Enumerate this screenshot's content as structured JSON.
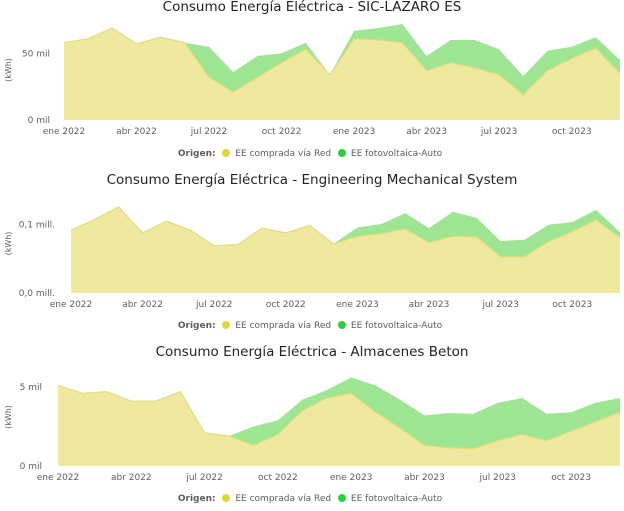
{
  "legend": {
    "title": "Origen:",
    "items": [
      {
        "name": "EE comprada vía Red",
        "color": "#e0d53c"
      },
      {
        "name": "EE fotovoltaica-Auto",
        "color": "#2ecc40"
      }
    ]
  },
  "colors": {
    "red_fill": "#efe9a0",
    "red_line": "#e2dc7a",
    "solar_fill": "#9ee694"
  },
  "chart_data": [
    {
      "type": "area",
      "stacked": true,
      "title": "Consumo Energía Eléctrica - SIC-LAZARO ES",
      "ylabel": "(kWh)",
      "x_ticks": [
        "ene 2022",
        "abr 2022",
        "jul 2022",
        "oct 2022",
        "ene 2023",
        "abr 2023",
        "jul 2023",
        "oct 2023"
      ],
      "y_ticks": [
        {
          "value": 0,
          "label": "0 mil"
        },
        {
          "value": 50000,
          "label": "50 mil"
        }
      ],
      "ylim": [
        0,
        75000
      ],
      "x": [
        "2022-01",
        "2022-02",
        "2022-03",
        "2022-04",
        "2022-05",
        "2022-06",
        "2022-07",
        "2022-08",
        "2022-09",
        "2022-10",
        "2022-11",
        "2022-12",
        "2023-01",
        "2023-02",
        "2023-03",
        "2023-04",
        "2023-05",
        "2023-06",
        "2023-07",
        "2023-08",
        "2023-09",
        "2023-10",
        "2023-11",
        "2023-12"
      ],
      "series": [
        {
          "name": "EE comprada vía Red",
          "values": [
            58000,
            61000,
            69000,
            57000,
            62000,
            58000,
            32000,
            21000,
            32000,
            43000,
            53000,
            34000,
            61000,
            60000,
            58000,
            37000,
            43000,
            39000,
            34000,
            19000,
            37000,
            46000,
            54000,
            35000
          ]
        },
        {
          "name": "EE fotovoltaica-Auto",
          "values": [
            0,
            0,
            0,
            0,
            0,
            0,
            23000,
            15000,
            16000,
            7000,
            5000,
            0,
            6000,
            9000,
            14000,
            11000,
            17000,
            21000,
            19000,
            14000,
            15000,
            9000,
            8000,
            10000
          ]
        }
      ]
    },
    {
      "type": "area",
      "stacked": true,
      "title": "Consumo Energía Eléctrica - Engineering Mechanical System",
      "ylabel": "(kWh)",
      "x_ticks": [
        "ene 2022",
        "abr 2022",
        "jul 2022",
        "oct 2022",
        "ene 2023",
        "abr 2023",
        "jul 2023",
        "oct 2023"
      ],
      "y_ticks": [
        {
          "value": 0,
          "label": "0,0 mill."
        },
        {
          "value": 100000,
          "label": "0,1 mill."
        }
      ],
      "ylim": [
        0,
        145000
      ],
      "x": [
        "2022-01",
        "2022-02",
        "2022-03",
        "2022-04",
        "2022-05",
        "2022-06",
        "2022-07",
        "2022-08",
        "2022-09",
        "2022-10",
        "2022-11",
        "2022-12",
        "2023-01",
        "2023-02",
        "2023-03",
        "2023-04",
        "2023-05",
        "2023-06",
        "2023-07",
        "2023-08",
        "2023-09",
        "2023-10",
        "2023-11",
        "2023-12"
      ],
      "series": [
        {
          "name": "EE comprada vía Red",
          "values": [
            92000,
            108000,
            126000,
            88000,
            105000,
            92000,
            69000,
            71000,
            95000,
            88000,
            99000,
            72000,
            83000,
            87000,
            94000,
            74000,
            83000,
            82000,
            53000,
            53000,
            75000,
            90000,
            107000,
            81000
          ]
        },
        {
          "name": "EE fotovoltaica-Auto",
          "values": [
            0,
            0,
            0,
            0,
            0,
            0,
            0,
            0,
            0,
            0,
            0,
            0,
            13000,
            14000,
            23000,
            21000,
            36000,
            28000,
            23000,
            25000,
            25000,
            14000,
            15000,
            8000
          ]
        }
      ]
    },
    {
      "type": "area",
      "stacked": true,
      "title": "Consumo Energía Eléctrica - Almacenes Beton",
      "ylabel": "(kWh)",
      "x_ticks": [
        "ene 2022",
        "abr 2022",
        "jul 2022",
        "oct 2022",
        "ene 2023",
        "abr 2023",
        "jul 2023",
        "oct 2023"
      ],
      "y_ticks": [
        {
          "value": 0,
          "label": "0 mil"
        },
        {
          "value": 5000,
          "label": "5 mil"
        }
      ],
      "ylim": [
        0,
        6200
      ],
      "x": [
        "2022-01",
        "2022-02",
        "2022-03",
        "2022-04",
        "2022-05",
        "2022-06",
        "2022-07",
        "2022-08",
        "2022-09",
        "2022-10",
        "2022-11",
        "2022-12",
        "2023-01",
        "2023-02",
        "2023-03",
        "2023-04",
        "2023-05",
        "2023-06",
        "2023-07",
        "2023-08",
        "2023-09",
        "2023-10",
        "2023-11",
        "2023-12"
      ],
      "series": [
        {
          "name": "EE comprada vía Red",
          "values": [
            5100,
            4600,
            4700,
            4100,
            4100,
            4700,
            2100,
            1900,
            1300,
            2000,
            3500,
            4300,
            4600,
            3400,
            2400,
            1300,
            1150,
            1100,
            1600,
            2000,
            1600,
            2200,
            2800,
            3400
          ]
        },
        {
          "name": "EE fotovoltaica-Auto",
          "values": [
            0,
            0,
            0,
            0,
            0,
            0,
            0,
            0,
            1200,
            900,
            700,
            500,
            1000,
            1700,
            1800,
            1900,
            2200,
            2200,
            2400,
            2300,
            1700,
            1200,
            1200,
            900
          ]
        }
      ]
    }
  ]
}
